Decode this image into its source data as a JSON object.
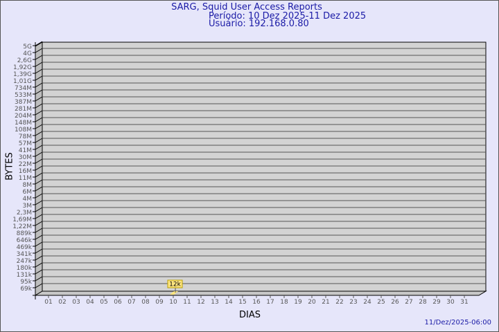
{
  "chart_data": {
    "type": "bar",
    "title": "SARG, Squid User Access Reports",
    "subtitle": [
      "Período: 10 Dez 2025-11 Dez 2025",
      "Usuário: 192.168.0.80"
    ],
    "xlabel": "DIAS",
    "ylabel": "BYTES",
    "y_scale": "log",
    "y_ticks": [
      "5G",
      "4G",
      "2,6G",
      "1,92G",
      "1,39G",
      "1,01G",
      "734M",
      "533M",
      "387M",
      "281M",
      "204M",
      "148M",
      "108M",
      "78M",
      "57M",
      "41M",
      "30M",
      "22M",
      "16M",
      "11M",
      "8M",
      "6M",
      "4M",
      "3M",
      "2,3M",
      "1,69M",
      "1,22M",
      "889k",
      "646k",
      "469k",
      "341k",
      "247k",
      "180k",
      "131k",
      "95k",
      "69k"
    ],
    "categories": [
      "01",
      "02",
      "03",
      "04",
      "05",
      "06",
      "07",
      "08",
      "09",
      "10",
      "11",
      "12",
      "13",
      "14",
      "15",
      "16",
      "17",
      "18",
      "19",
      "20",
      "21",
      "22",
      "23",
      "24",
      "25",
      "26",
      "27",
      "28",
      "29",
      "30",
      "31"
    ],
    "bars": [
      {
        "day": "10",
        "value": "12k"
      }
    ],
    "grid": true,
    "colors": {
      "background": "#e6e6fa",
      "panel": "#d3d3d3",
      "bar": "#ffe680",
      "title": "#1a1aa6"
    }
  },
  "footer": {
    "timestamp": "11/Dez/2025-06:00"
  }
}
